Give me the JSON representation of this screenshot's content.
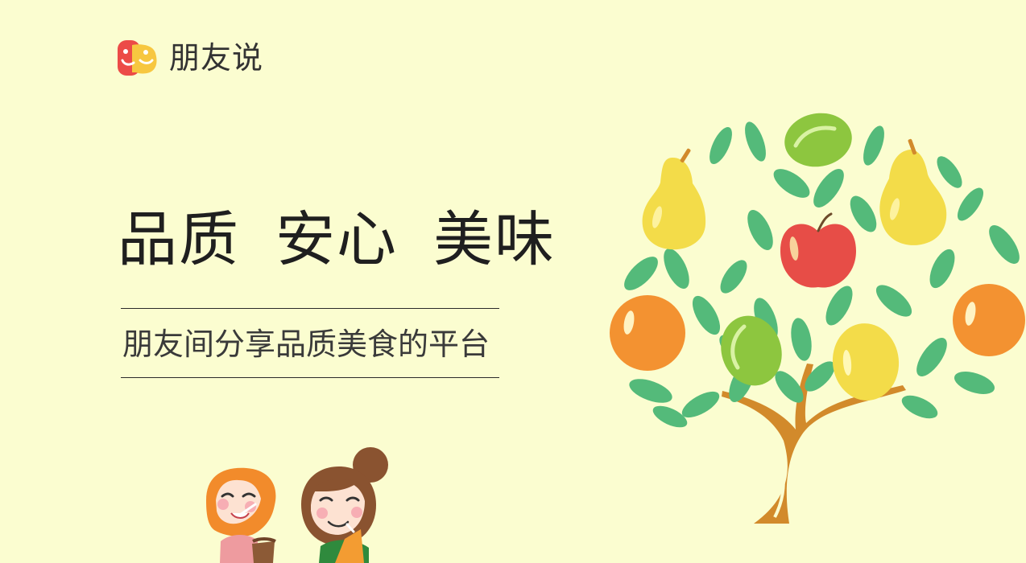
{
  "brand": {
    "name": "朋友说",
    "logo_icon": "smiling-chat-faces-icon",
    "colors": {
      "red": "#ec4b47",
      "yellow": "#f7c740"
    }
  },
  "hero": {
    "headline_parts": [
      "品质",
      "安心",
      "美味"
    ],
    "tagline": "朋友间分享品质美食的平台"
  },
  "illustrations": {
    "tree": "fruit-tree-icon",
    "kids": "children-drinking-icon"
  },
  "colors": {
    "background": "#fbfdd0",
    "leaf_green": "#54ba7a",
    "trunk": "#d28a2b",
    "orange": "#f39231",
    "apple": "#e74d47",
    "lime": "#8dc63f",
    "pear": "#f3dc49"
  }
}
